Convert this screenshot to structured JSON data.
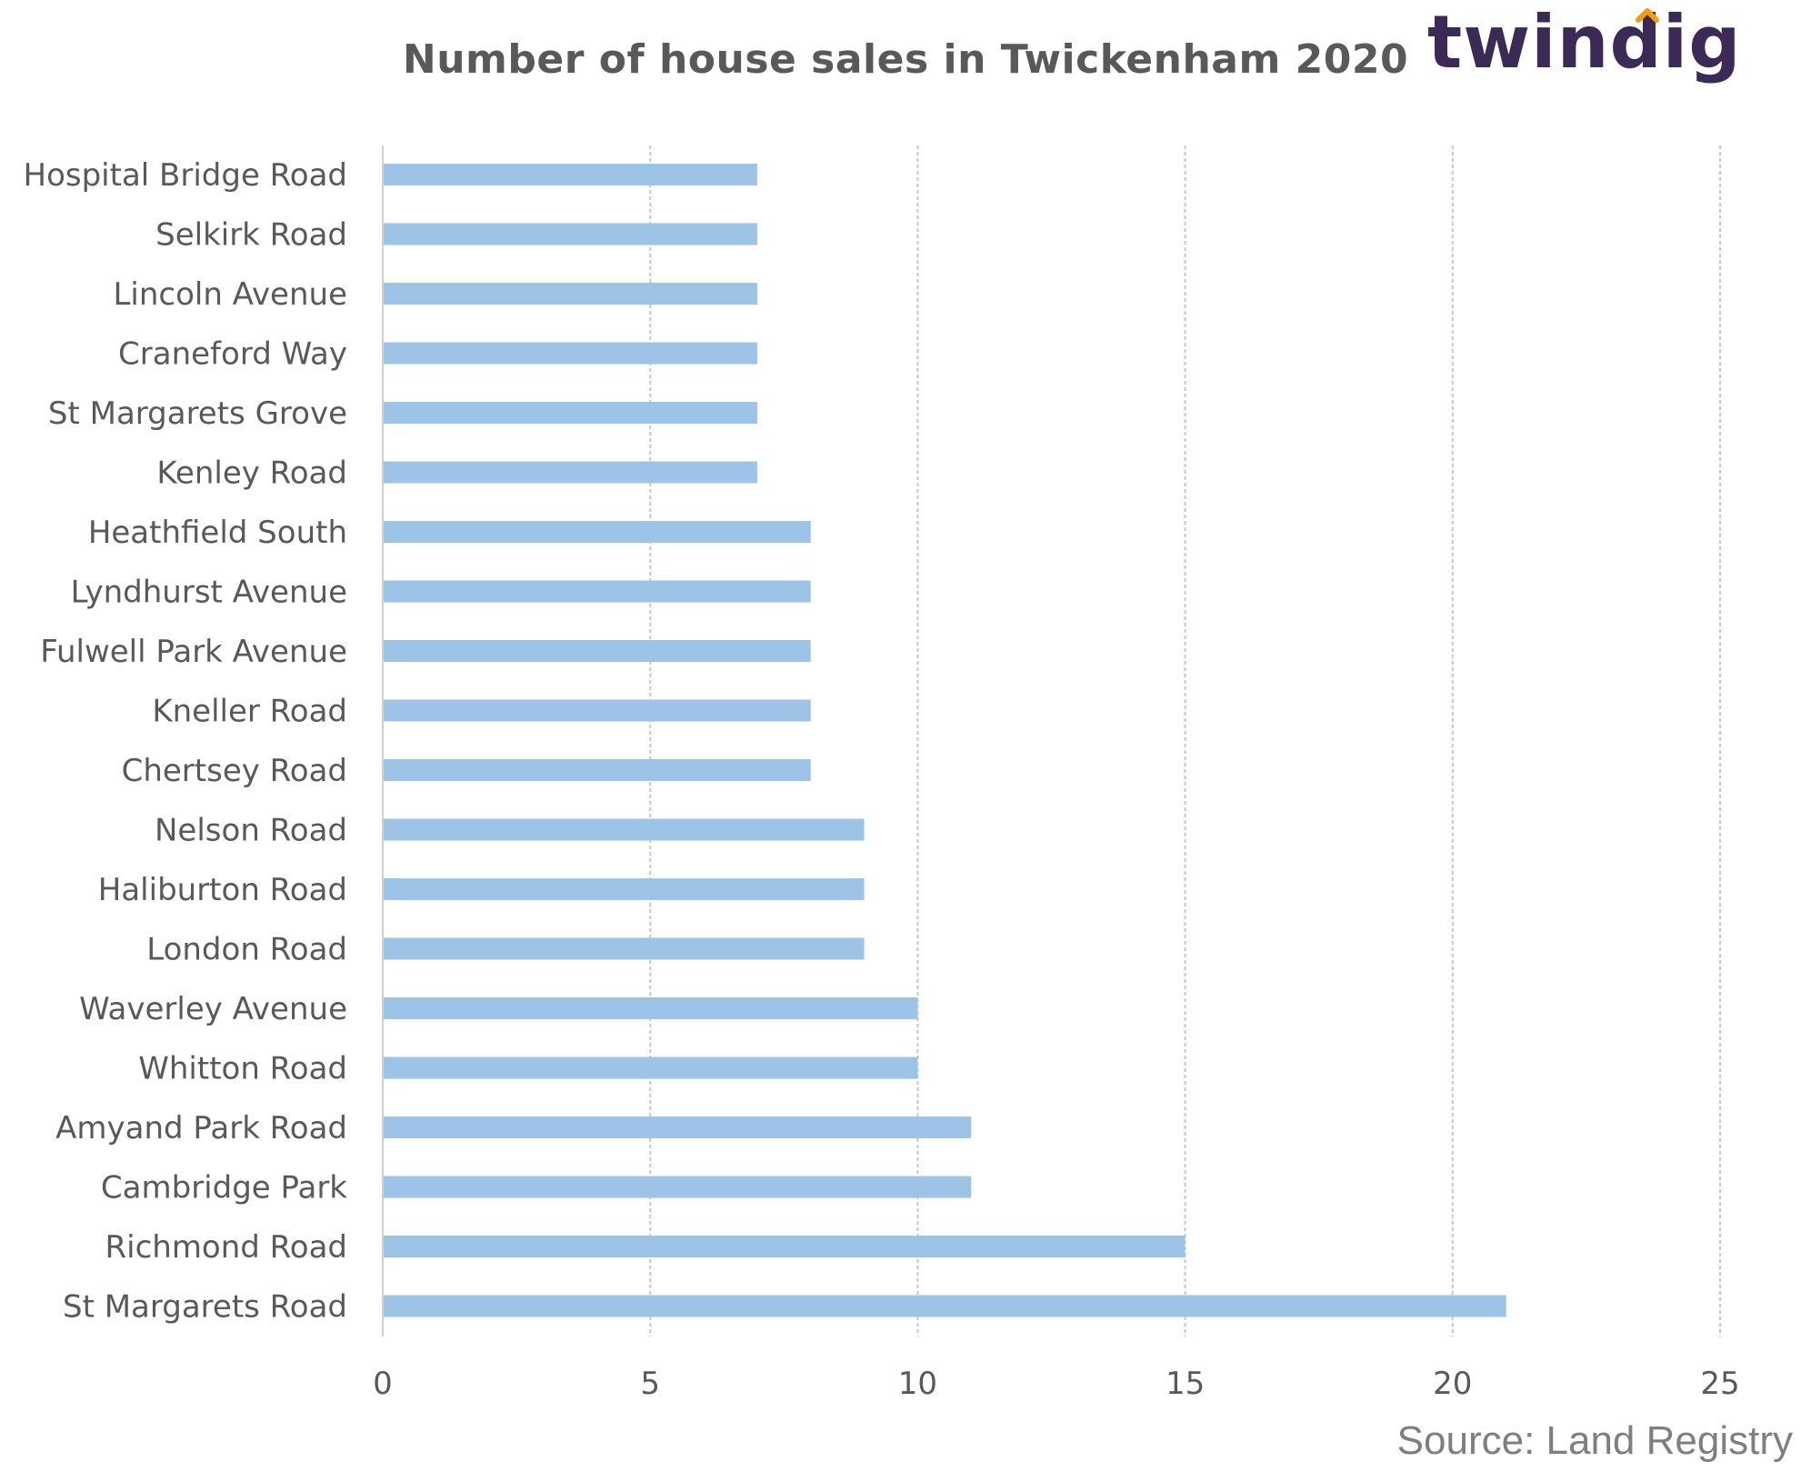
{
  "chart_data": {
    "type": "bar",
    "orientation": "horizontal",
    "title": "Number of house sales in Twickenham 2020",
    "categories": [
      "Hospital Bridge Road",
      "Selkirk Road",
      "Lincoln Avenue",
      "Craneford Way",
      "St Margarets Grove",
      "Kenley Road",
      "Heathfield South",
      "Lyndhurst Avenue",
      "Fulwell Park Avenue",
      "Kneller Road",
      "Chertsey Road",
      "Nelson Road",
      "Haliburton Road",
      "London Road",
      "Waverley Avenue",
      "Whitton Road",
      "Amyand Park Road",
      "Cambridge Park",
      "Richmond Road",
      "St Margarets Road"
    ],
    "values": [
      7,
      7,
      7,
      7,
      7,
      7,
      8,
      8,
      8,
      8,
      8,
      9,
      9,
      9,
      10,
      10,
      11,
      11,
      15,
      21
    ],
    "xlim": [
      0,
      25
    ],
    "xticks": [
      0,
      5,
      10,
      15,
      20,
      25
    ],
    "grid": "vertical dashed",
    "bar_color": "#9dc3e6"
  },
  "logo": {
    "text": "twindig",
    "text_color": "#3a2a55",
    "accent_color": "#f39c12"
  },
  "source": "Source: Land Registry"
}
